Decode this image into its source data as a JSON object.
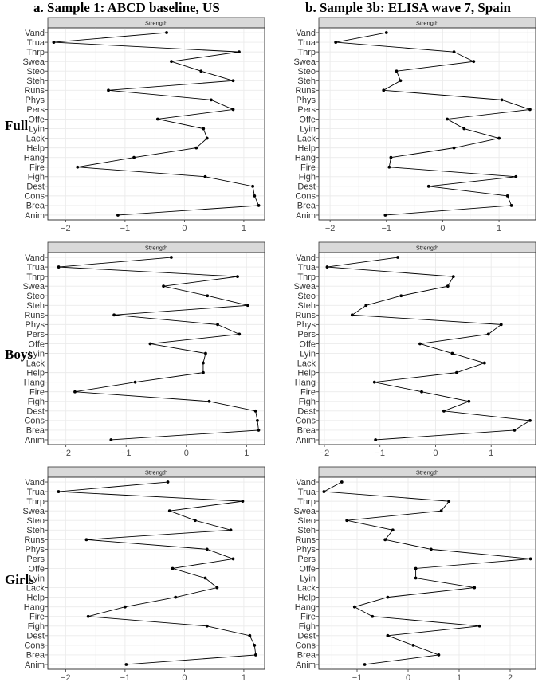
{
  "column_titles": [
    "a. Sample 1: ABCD baseline, US",
    "b. Sample 3b: ELISA wave 7, Spain"
  ],
  "row_titles": [
    "Full",
    "Boys",
    "Girls"
  ],
  "strip_label": "Strength",
  "chart_data": [
    {
      "type": "line",
      "title": "a. Sample 1: ABCD baseline, US",
      "row": "Full",
      "strip": "Strength",
      "categories": [
        "Vand",
        "Trua",
        "Thrp",
        "Swea",
        "Steo",
        "Steh",
        "Runs",
        "Phys",
        "Pers",
        "Offe",
        "Lyin",
        "Lack",
        "Help",
        "Hang",
        "Fire",
        "Figh",
        "Dest",
        "Cons",
        "Brea",
        "Anim"
      ],
      "values": [
        -0.3,
        -2.2,
        0.92,
        -0.22,
        0.28,
        0.82,
        -1.28,
        0.45,
        0.82,
        -0.45,
        0.32,
        0.38,
        0.2,
        -0.85,
        -1.8,
        0.35,
        1.15,
        1.18,
        1.25,
        -1.12
      ],
      "xticks": [
        -2,
        -1,
        0,
        1
      ],
      "xlim": [
        -2.3,
        1.35
      ]
    },
    {
      "type": "line",
      "title": "b. Sample 3b: ELISA wave 7, Spain",
      "row": "Full",
      "strip": "Strength",
      "categories": [
        "Vand",
        "Trua",
        "Thrp",
        "Swea",
        "Steo",
        "Steh",
        "Runs",
        "Phys",
        "Pers",
        "Offe",
        "Lyin",
        "Lack",
        "Help",
        "Hang",
        "Fire",
        "Figh",
        "Dest",
        "Cons",
        "Brea",
        "Anim"
      ],
      "values": [
        -1.0,
        -1.9,
        0.2,
        0.55,
        -0.82,
        -0.75,
        -1.05,
        1.05,
        1.55,
        0.08,
        0.38,
        1.0,
        0.2,
        -0.92,
        -0.95,
        1.3,
        -0.25,
        1.15,
        1.22,
        -1.02
      ],
      "xticks": [
        -2,
        -1,
        0,
        1
      ],
      "xlim": [
        -2.2,
        1.65
      ]
    },
    {
      "type": "line",
      "title": "a. Sample 1: ABCD baseline, US",
      "row": "Boys",
      "strip": "Strength",
      "categories": [
        "Vand",
        "Trua",
        "Thrp",
        "Swea",
        "Steo",
        "Steh",
        "Runs",
        "Phys",
        "Pers",
        "Offe",
        "Lyin",
        "Lack",
        "Help",
        "Hang",
        "Fire",
        "Figh",
        "Dest",
        "Cons",
        "Brea",
        "Anim"
      ],
      "values": [
        -0.25,
        -2.12,
        0.85,
        -0.38,
        0.35,
        1.02,
        -1.2,
        0.52,
        0.88,
        -0.6,
        0.32,
        0.28,
        0.28,
        -0.85,
        -1.85,
        0.38,
        1.15,
        1.18,
        1.2,
        -1.25
      ],
      "xticks": [
        -2,
        -1,
        0,
        1
      ],
      "xlim": [
        -2.3,
        1.3
      ]
    },
    {
      "type": "line",
      "title": "b. Sample 3b: ELISA wave 7, Spain",
      "row": "Boys",
      "strip": "Strength",
      "categories": [
        "Vand",
        "Trua",
        "Thrp",
        "Swea",
        "Steo",
        "Steh",
        "Runs",
        "Phys",
        "Pers",
        "Offe",
        "Lyin",
        "Lack",
        "Help",
        "Hang",
        "Fire",
        "Figh",
        "Dest",
        "Cons",
        "Brea",
        "Anim"
      ],
      "values": [
        -0.68,
        -1.95,
        0.32,
        0.22,
        -0.62,
        -1.25,
        -1.5,
        1.18,
        0.95,
        -0.28,
        0.3,
        0.88,
        0.38,
        -1.1,
        -0.25,
        0.6,
        0.15,
        1.7,
        1.42,
        -1.08
      ],
      "xticks": [
        -2,
        -1,
        0,
        1
      ],
      "xlim": [
        -2.1,
        1.8
      ]
    },
    {
      "type": "line",
      "title": "a. Sample 1: ABCD baseline, US",
      "row": "Girls",
      "strip": "Strength",
      "categories": [
        "Vand",
        "Trua",
        "Thrp",
        "Swea",
        "Steo",
        "Steh",
        "Runs",
        "Phys",
        "Pers",
        "Offe",
        "Lyin",
        "Lack",
        "Help",
        "Hang",
        "Fire",
        "Figh",
        "Dest",
        "Cons",
        "Brea",
        "Anim"
      ],
      "values": [
        -0.28,
        -2.12,
        0.98,
        -0.25,
        0.18,
        0.78,
        -1.65,
        0.38,
        0.82,
        -0.2,
        0.35,
        0.55,
        -0.15,
        -1.0,
        -1.62,
        0.38,
        1.1,
        1.18,
        1.2,
        -0.98
      ],
      "xticks": [
        -2,
        -1,
        0,
        1
      ],
      "xlim": [
        -2.3,
        1.35
      ]
    },
    {
      "type": "line",
      "title": "b. Sample 3b: ELISA wave 7, Spain",
      "row": "Girls",
      "strip": "Strength",
      "categories": [
        "Vand",
        "Trua",
        "Thrp",
        "Swea",
        "Steo",
        "Steh",
        "Runs",
        "Phys",
        "Pers",
        "Offe",
        "Lyin",
        "Lack",
        "Help",
        "Hang",
        "Fire",
        "Figh",
        "Dest",
        "Cons",
        "Brea",
        "Anim"
      ],
      "values": [
        -1.3,
        -1.65,
        0.8,
        0.65,
        -1.2,
        -0.3,
        -0.45,
        0.45,
        2.4,
        0.15,
        0.15,
        1.3,
        -0.4,
        -1.05,
        -0.7,
        1.4,
        -0.4,
        0.1,
        0.6,
        -0.85
      ],
      "xticks": [
        -1,
        0,
        1,
        2
      ],
      "xlim": [
        -1.75,
        2.5
      ]
    }
  ]
}
